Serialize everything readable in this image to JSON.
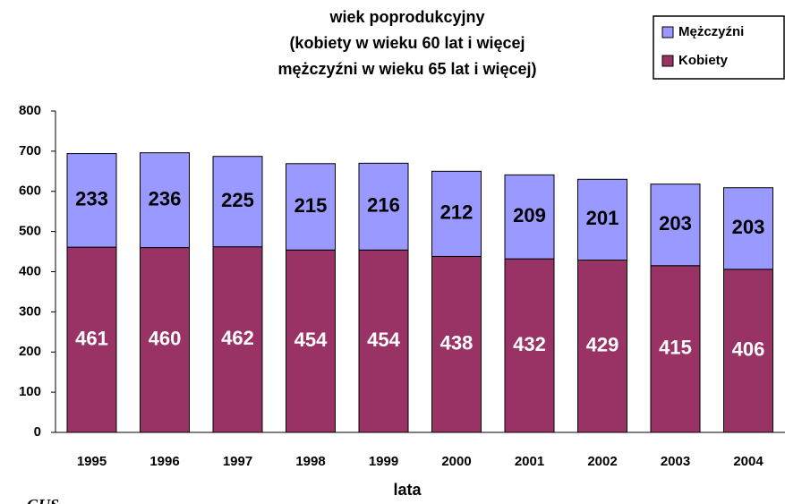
{
  "chart_data": {
    "type": "stacked_bar",
    "title": [
      "wiek poprodukcyjny",
      "(kobiety w wieku 60 lat i więcej",
      "mężczyźni w wieku 65 lat i więcej)"
    ],
    "x_label": "lata",
    "source": "GUS",
    "categories": [
      "1995",
      "1996",
      "1997",
      "1998",
      "1999",
      "2000",
      "2001",
      "2002",
      "2003",
      "2004"
    ],
    "series": [
      {
        "name": "Kobiety",
        "color": "#993366",
        "values": [
          461,
          460,
          462,
          454,
          454,
          438,
          432,
          429,
          415,
          406
        ]
      },
      {
        "name": "Mężczyźni",
        "color": "#9999ff",
        "values": [
          233,
          236,
          225,
          215,
          216,
          212,
          209,
          201,
          203,
          203
        ]
      }
    ],
    "ylim": [
      0,
      800
    ],
    "yticks": [
      0,
      100,
      200,
      300,
      400,
      500,
      600,
      700,
      800
    ],
    "legend": "top-right"
  }
}
